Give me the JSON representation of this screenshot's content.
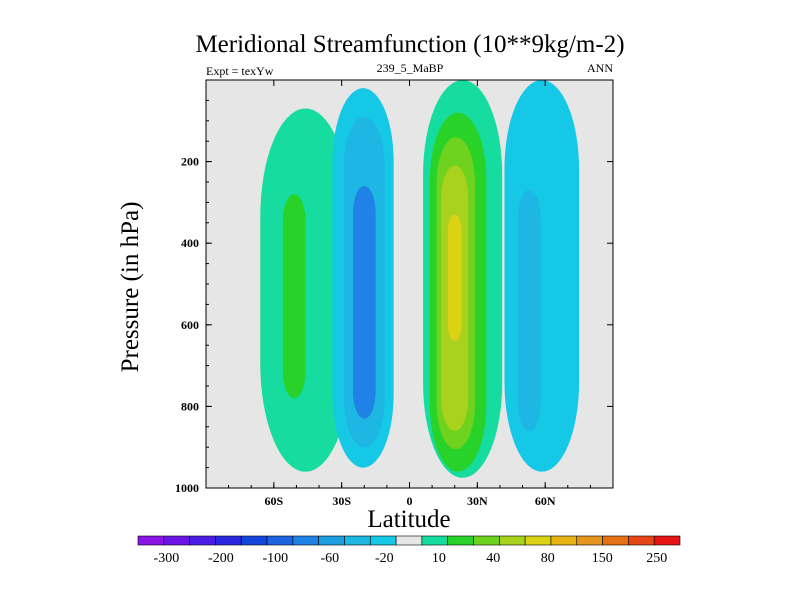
{
  "chart_data": {
    "type": "contour",
    "title": "Meridional Streamfunction (10**9kg/m-2)",
    "subtitle_left": "Expt = texYw",
    "subtitle_center": "239_5_MaBP",
    "subtitle_right": "ANN",
    "xlabel": "Latitude",
    "ylabel": "Pressure (in hPa)",
    "xlim": [
      -90,
      90
    ],
    "ylim": [
      1000,
      0
    ],
    "xticks": [
      {
        "value": -60,
        "label": "60S"
      },
      {
        "value": -30,
        "label": "30S"
      },
      {
        "value": 0,
        "label": "0"
      },
      {
        "value": 30,
        "label": "30N"
      },
      {
        "value": 60,
        "label": "60N"
      }
    ],
    "yticks": [
      {
        "value": 200,
        "label": "200"
      },
      {
        "value": 400,
        "label": "400"
      },
      {
        "value": 600,
        "label": "600"
      },
      {
        "value": 800,
        "label": "800"
      },
      {
        "value": 1000,
        "label": "1000"
      }
    ],
    "background_color": "#e6e6e6",
    "colorbar": {
      "colors": [
        "#8a14e6",
        "#6a14e6",
        "#4a1ee6",
        "#2a28e0",
        "#1446dc",
        "#1c64e2",
        "#1f82e6",
        "#1e9ee0",
        "#1eb6e2",
        "#14c8e6",
        "#e6e6e6",
        "#16dca0",
        "#28d228",
        "#6ed21e",
        "#a8d21e",
        "#dcd214",
        "#e6b414",
        "#e6961e",
        "#e67014",
        "#e64614",
        "#e61414"
      ],
      "labels": [
        "-300",
        "-200",
        "-100",
        "-60",
        "-20",
        "10",
        "40",
        "80",
        "150",
        "250"
      ]
    },
    "regions": [
      {
        "name": "sh-polar-positive",
        "level": "10 to 40",
        "color": "#16dca0",
        "lat_range": [
          -66,
          -26
        ],
        "p_range": [
          70,
          960
        ]
      },
      {
        "name": "sh-polar-core",
        "level": "40 to 80",
        "color": "#28d228",
        "lat_range": [
          -56,
          -46
        ],
        "p_range": [
          280,
          780
        ]
      },
      {
        "name": "sh-ferrel-negative",
        "level": "-20 to -10",
        "color": "#14c8e6",
        "lat_range": [
          -34,
          -7
        ],
        "p_range": [
          20,
          950
        ]
      },
      {
        "name": "sh-ferrel-mid",
        "level": "-60 to -20",
        "color": "#1eb6e2",
        "lat_range": [
          -29,
          -11
        ],
        "p_range": [
          90,
          900
        ]
      },
      {
        "name": "sh-ferrel-core",
        "level": "-100 to -60",
        "color": "#1f82e6",
        "lat_range": [
          -25,
          -15
        ],
        "p_range": [
          260,
          830
        ]
      },
      {
        "name": "hadley-positive",
        "level": "10 to 40",
        "color": "#16dca0",
        "lat_range": [
          6,
          41
        ],
        "p_range": [
          0,
          975
        ]
      },
      {
        "name": "hadley-mid",
        "level": "40 to 80",
        "color": "#28d228",
        "lat_range": [
          9,
          34
        ],
        "p_range": [
          80,
          960
        ]
      },
      {
        "name": "hadley-high",
        "level": "80 to 150",
        "color": "#6ed21e",
        "lat_range": [
          12,
          29
        ],
        "p_range": [
          140,
          905
        ]
      },
      {
        "name": "hadley-core",
        "level": "150 to 250",
        "color": "#a8d21e",
        "lat_range": [
          14,
          26
        ],
        "p_range": [
          210,
          860
        ]
      },
      {
        "name": "hadley-peak",
        "level": "250 to 300",
        "color": "#dcd214",
        "lat_range": [
          17,
          23
        ],
        "p_range": [
          330,
          640
        ]
      },
      {
        "name": "nh-ferrel-negative",
        "level": "-20 to -10",
        "color": "#14c8e6",
        "lat_range": [
          42,
          75
        ],
        "p_range": [
          0,
          960
        ]
      },
      {
        "name": "nh-ferrel-core",
        "level": "-60 to -20",
        "color": "#1eb6e2",
        "lat_range": [
          48,
          58
        ],
        "p_range": [
          270,
          860
        ]
      }
    ]
  }
}
